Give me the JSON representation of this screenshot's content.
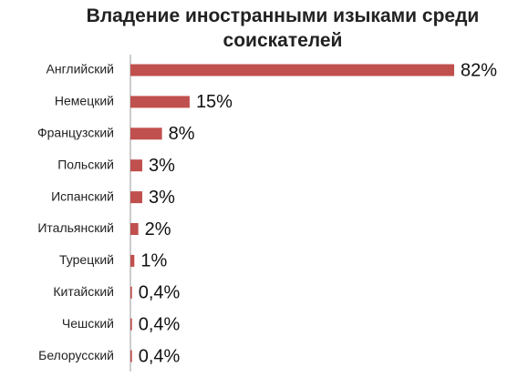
{
  "chart_data": {
    "type": "bar",
    "orientation": "horizontal",
    "title": "Владение иностранными изыками среди соискателей",
    "categories": [
      "Английский",
      "Немецкий",
      "Французский",
      "Польский",
      "Испанский",
      "Итальянский",
      "Турецкий",
      "Китайский",
      "Чешский",
      "Белорусский"
    ],
    "values": [
      82,
      15,
      8,
      3,
      3,
      2,
      1,
      0.4,
      0.4,
      0.4
    ],
    "value_labels": [
      "82%",
      "15%",
      "8%",
      "3%",
      "3%",
      "2%",
      "1%",
      "0,4%",
      "0,4%",
      "0,4%"
    ],
    "color": "#c0504d"
  }
}
